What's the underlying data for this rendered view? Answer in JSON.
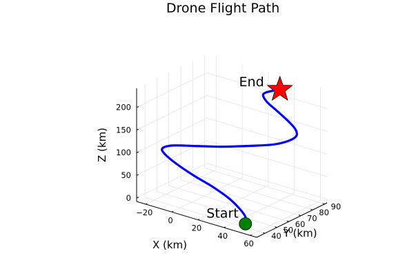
{
  "chart_data": {
    "type": "line3d",
    "title": "Drone Flight Path",
    "xlabel": "X (km)",
    "ylabel": "Y (km)",
    "zlabel": "Z (km)",
    "xticks": [
      -20,
      0,
      20,
      40,
      60
    ],
    "yticks": [
      40,
      50,
      60,
      70,
      80,
      90
    ],
    "zticks": [
      0,
      50,
      100,
      150,
      200
    ],
    "xlim": [
      -27,
      65
    ],
    "ylim": [
      33,
      92
    ],
    "zlim": [
      -8,
      242
    ],
    "grid": true,
    "series": [
      {
        "color": "#0000ff",
        "points": [
          [
            50,
            40,
            0
          ],
          [
            48,
            42,
            12
          ],
          [
            42,
            43,
            25
          ],
          [
            33,
            44,
            38
          ],
          [
            20,
            45,
            50
          ],
          [
            6,
            45,
            62
          ],
          [
            -8,
            46,
            74
          ],
          [
            -18,
            47,
            86
          ],
          [
            -21,
            48,
            95
          ],
          [
            -15,
            50,
            104
          ],
          [
            0,
            53,
            112
          ],
          [
            17,
            57,
            120
          ],
          [
            34,
            62,
            130
          ],
          [
            48,
            66,
            140
          ],
          [
            56,
            70,
            150
          ],
          [
            59,
            73,
            160
          ],
          [
            56,
            75,
            170
          ],
          [
            48,
            77,
            180
          ],
          [
            38,
            79,
            190
          ],
          [
            30,
            80,
            200
          ],
          [
            26,
            81,
            210
          ],
          [
            28,
            81,
            218
          ],
          [
            33,
            81,
            226
          ],
          [
            38,
            82,
            232
          ]
        ]
      }
    ],
    "annotations": [
      {
        "text": "Start",
        "point": [
          50,
          40,
          0
        ],
        "marker": "circle",
        "color": "#008000"
      },
      {
        "text": "End",
        "point": [
          38,
          82,
          232
        ],
        "marker": "star",
        "color": "#ff0000"
      }
    ]
  }
}
